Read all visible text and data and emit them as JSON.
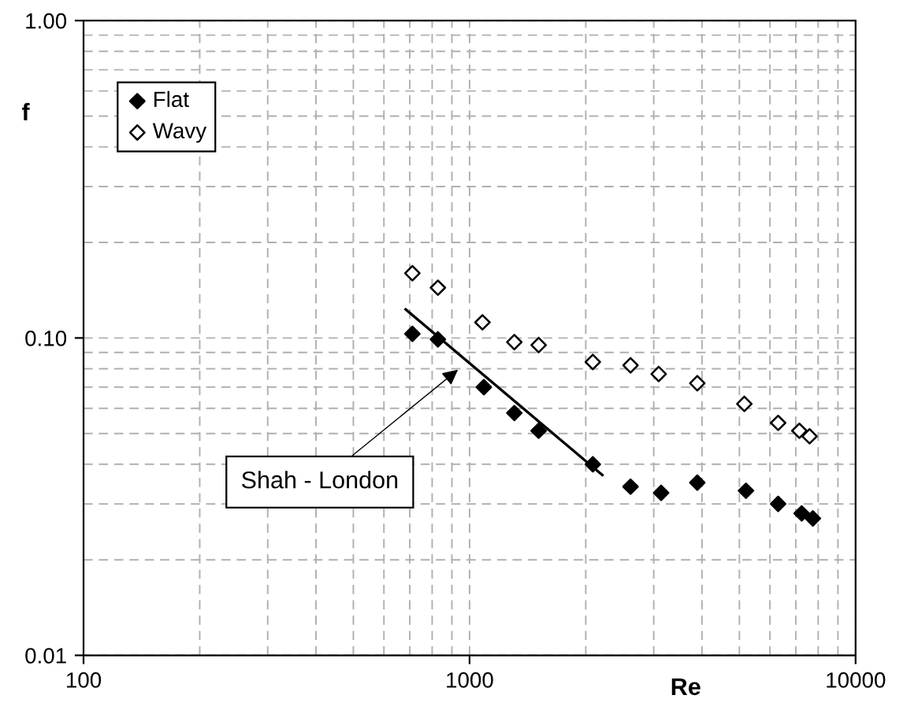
{
  "chart_data": {
    "type": "scatter",
    "xlabel": "Re",
    "ylabel": "f",
    "log": "xy",
    "xlim": [
      100,
      10000
    ],
    "ylim": [
      0.01,
      1.0
    ],
    "xticks": [
      100,
      1000,
      10000
    ],
    "yticks": [
      {
        "value": 0.01,
        "label": "0.01"
      },
      {
        "value": 0.1,
        "label": "0.10"
      },
      {
        "value": 1.0,
        "label": "1.00"
      }
    ],
    "grid": true,
    "legend": "top left",
    "annotations": [
      "Shah - London"
    ],
    "series": [
      {
        "name": "Flat",
        "color": "#000000",
        "marker": "diamond",
        "x": [
          711,
          828,
          1089,
          1306,
          1510,
          2086,
          2612,
          3135,
          3890,
          5200,
          6300,
          7250,
          7750
        ],
        "values": [
          0.103,
          0.099,
          0.07,
          0.058,
          0.051,
          0.04,
          0.034,
          0.0325,
          0.035,
          0.033,
          0.03,
          0.028,
          0.027
        ]
      },
      {
        "name": "Wavy",
        "color": "#ffffff",
        "marker": "diamond",
        "x": [
          711,
          828,
          1080,
          1306,
          1510,
          2086,
          2612,
          3090,
          3890,
          5150,
          6300,
          7150,
          7600
        ],
        "values": [
          0.16,
          0.144,
          0.112,
          0.097,
          0.095,
          0.084,
          0.082,
          0.077,
          0.072,
          0.062,
          0.054,
          0.051,
          0.049
        ]
      },
      {
        "type": "line",
        "color": "#000000",
        "x": [
          683,
          2208
        ],
        "values": [
          0.123,
          0.037
        ]
      }
    ]
  }
}
